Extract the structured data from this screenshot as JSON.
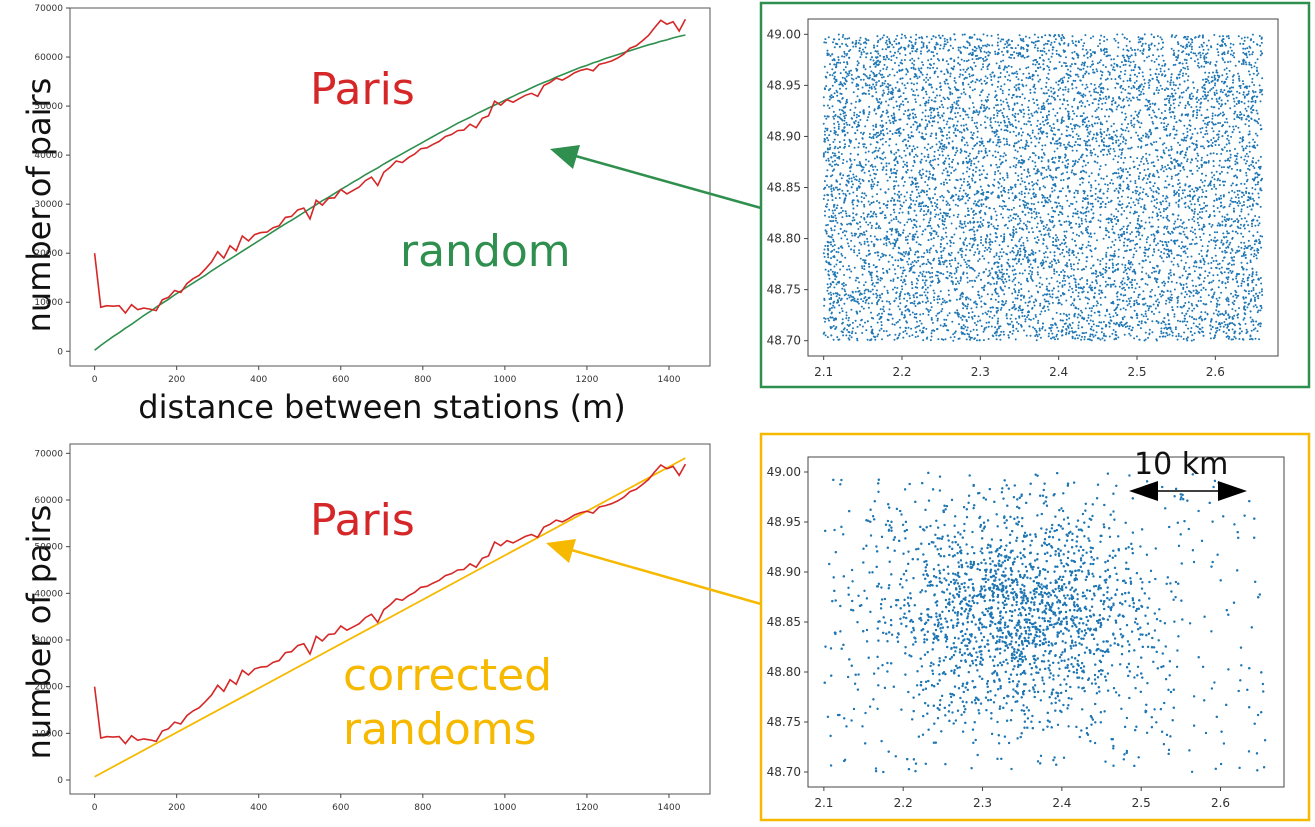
{
  "colors": {
    "paris": "#d62728",
    "random": "#2f8f4e",
    "corrected": "#f6b900",
    "scatter": "#1f77b4",
    "green_frame": "#2f8f4e",
    "yellow_frame": "#f6b900"
  },
  "labels": {
    "ylabel_top": "number of pairs",
    "ylabel_bottom": "number of pairs",
    "xlabel_top": "distance between stations (m)",
    "paris_top": "Paris",
    "random_top": "random",
    "paris_bottom": "Paris",
    "corrected_1": "corrected",
    "corrected_2": "randoms",
    "scale_bar": "10 km"
  },
  "chart_data": [
    {
      "type": "line",
      "xlabel": "distance between stations (m)",
      "ylabel": "number of pairs",
      "xlim": [
        -60,
        1500
      ],
      "ylim": [
        -3000,
        70000
      ],
      "xticks": [
        "0",
        "200",
        "400",
        "600",
        "800",
        "1000",
        "1200",
        "1400"
      ],
      "yticks": [
        "0",
        "10000",
        "20000",
        "30000",
        "40000",
        "50000",
        "60000",
        "70000"
      ],
      "x": [
        0,
        15,
        30,
        45,
        60,
        75,
        90,
        105,
        120,
        135,
        150,
        165,
        180,
        195,
        210,
        225,
        240,
        255,
        270,
        285,
        300,
        315,
        330,
        345,
        360,
        375,
        390,
        405,
        420,
        435,
        450,
        465,
        480,
        495,
        510,
        525,
        540,
        555,
        570,
        585,
        600,
        615,
        630,
        645,
        660,
        675,
        690,
        705,
        720,
        735,
        750,
        765,
        780,
        795,
        810,
        825,
        840,
        855,
        870,
        885,
        900,
        915,
        930,
        945,
        960,
        975,
        990,
        1005,
        1020,
        1035,
        1050,
        1065,
        1080,
        1095,
        1110,
        1125,
        1140,
        1155,
        1170,
        1185,
        1200,
        1215,
        1230,
        1245,
        1260,
        1275,
        1290,
        1305,
        1320,
        1335,
        1350,
        1365,
        1380,
        1395,
        1410,
        1425,
        1440
      ],
      "series": [
        {
          "name": "Paris",
          "values": [
            20000,
            9000,
            9300,
            9200,
            9300,
            7800,
            9500,
            8500,
            8800,
            8600,
            8300,
            10500,
            11000,
            12400,
            12000,
            13800,
            14800,
            15500,
            16800,
            18200,
            20300,
            19000,
            21500,
            20500,
            23500,
            22500,
            23800,
            24200,
            24300,
            25200,
            25600,
            27300,
            27500,
            28800,
            29200,
            27000,
            30800,
            29800,
            31200,
            31300,
            33000,
            32100,
            32800,
            33500,
            34800,
            35500,
            33800,
            36500,
            37500,
            38800,
            38500,
            39500,
            40200,
            41300,
            41500,
            42200,
            42800,
            43800,
            44200,
            45000,
            45100,
            46300,
            45600,
            47500,
            48000,
            51000,
            50200,
            51300,
            50800,
            51500,
            52200,
            52600,
            52000,
            54200,
            54800,
            55700,
            55300,
            56000,
            56800,
            57300,
            57600,
            57200,
            58500,
            58800,
            59200,
            59800,
            60600,
            61800,
            62300,
            63300,
            64400,
            66000,
            67500,
            66700,
            67200,
            65300,
            67700
          ]
        },
        {
          "name": "random",
          "values": [
            200,
            1200,
            2100,
            3000,
            3800,
            4700,
            5500,
            6400,
            7300,
            8100,
            9000,
            9800,
            10600,
            11500,
            12300,
            13100,
            13900,
            14700,
            15500,
            16400,
            17200,
            18000,
            18800,
            19600,
            20400,
            21200,
            22000,
            22800,
            23600,
            24400,
            25200,
            26000,
            26700,
            27500,
            28300,
            29100,
            29900,
            30700,
            31400,
            32200,
            33000,
            33700,
            34500,
            35200,
            36000,
            36700,
            37400,
            38200,
            38900,
            39600,
            40300,
            41000,
            41700,
            42400,
            43100,
            43800,
            44500,
            45100,
            45800,
            46500,
            47100,
            47700,
            48400,
            49000,
            49600,
            50200,
            50800,
            51400,
            52000,
            52600,
            53100,
            53700,
            54300,
            54800,
            55300,
            55900,
            56400,
            56900,
            57400,
            57900,
            58300,
            58800,
            59200,
            59700,
            60100,
            60500,
            60900,
            61300,
            61700,
            62100,
            62500,
            62800,
            63200,
            63500,
            63900,
            64200,
            64500
          ]
        }
      ]
    },
    {
      "type": "scatter",
      "xlim": [
        2.08,
        2.68
      ],
      "ylim": [
        48.685,
        49.015
      ],
      "xticks": [
        "2.1",
        "2.2",
        "2.3",
        "2.4",
        "2.5",
        "2.6"
      ],
      "yticks": [
        "48.70",
        "48.75",
        "48.80",
        "48.85",
        "48.90",
        "48.95",
        "49.00"
      ],
      "distribution": "uniform",
      "x_range": [
        2.1,
        2.66
      ],
      "y_range": [
        48.7,
        49.0
      ]
    },
    {
      "type": "line",
      "ylabel": "number of pairs",
      "xlim": [
        -60,
        1500
      ],
      "ylim": [
        -3000,
        72000
      ],
      "xticks": [
        "0",
        "200",
        "400",
        "600",
        "800",
        "1000",
        "1200",
        "1400"
      ],
      "yticks": [
        "0",
        "10000",
        "20000",
        "30000",
        "40000",
        "50000",
        "60000",
        "70000"
      ],
      "series": [
        {
          "name": "Paris",
          "same_as_top": true
        },
        {
          "name": "corrected randoms",
          "start": [
            0,
            700
          ],
          "end": [
            1440,
            69000
          ]
        }
      ]
    },
    {
      "type": "scatter",
      "xlim": [
        2.08,
        2.68
      ],
      "ylim": [
        48.685,
        49.015
      ],
      "xticks": [
        "2.1",
        "2.2",
        "2.3",
        "2.4",
        "2.5",
        "2.6"
      ],
      "yticks": [
        "48.70",
        "48.75",
        "48.80",
        "48.85",
        "48.90",
        "48.95",
        "49.00"
      ],
      "distribution": "clustered",
      "center": [
        2.34,
        48.86
      ],
      "annotation": "10 km"
    }
  ]
}
